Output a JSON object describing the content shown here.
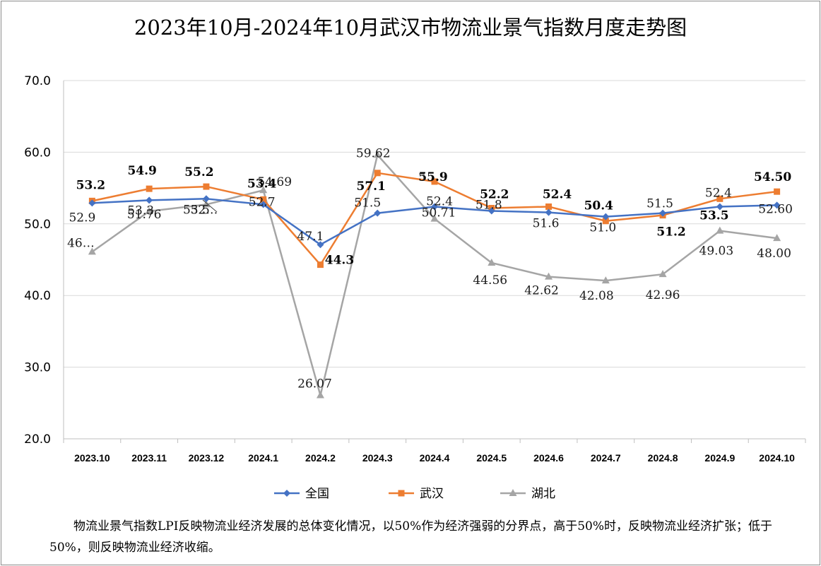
{
  "chart_data": {
    "type": "line",
    "title": "2023年10月-2024年10月武汉市物流业景气指数月度走势图",
    "categories": [
      "2023.10",
      "2023.11",
      "2023.12",
      "2024.1",
      "2024.2",
      "2024.3",
      "2024.4",
      "2024.5",
      "2024.6",
      "2024.7",
      "2024.8",
      "2024.9",
      "2024.10"
    ],
    "ylim": [
      20,
      70
    ],
    "yticks": [
      "20.0",
      "30.0",
      "40.0",
      "50.0",
      "60.0",
      "70.0"
    ],
    "grid": "horizontal",
    "legend_position": "bottom",
    "series": [
      {
        "name": "全国",
        "color": "#4472C4",
        "marker": "diamond",
        "values": [
          52.9,
          53.3,
          53.5,
          52.7,
          47.1,
          51.5,
          52.4,
          51.8,
          51.6,
          51.0,
          51.5,
          52.4,
          52.6
        ],
        "labels": [
          "52.9",
          "53.3",
          "53.5",
          "52.7",
          "47.1",
          "51.5",
          "52.4",
          "51.8",
          "51.6",
          "51.0",
          "51.5",
          "52.4",
          "52.60"
        ]
      },
      {
        "name": "武汉",
        "color": "#ED7D31",
        "marker": "square",
        "values": [
          53.2,
          54.9,
          55.2,
          53.4,
          44.3,
          57.1,
          55.9,
          52.2,
          52.4,
          50.4,
          51.2,
          53.5,
          54.5
        ],
        "labels": [
          "53.2",
          "54.9",
          "55.2",
          "53.4",
          "44.3",
          "57.1",
          "55.9",
          "52.2",
          "52.4",
          "50.4",
          "51.2",
          "53.5",
          "54.50"
        ]
      },
      {
        "name": "湖北",
        "color": "#A5A5A5",
        "marker": "triangle",
        "values": [
          46.1,
          51.76,
          52.7,
          54.69,
          26.07,
          59.62,
          50.71,
          44.56,
          42.62,
          42.08,
          42.96,
          49.03,
          48.0
        ],
        "labels": [
          "46…",
          "51.76",
          "52…",
          "54.69",
          "26.07",
          "59.62",
          "50.71",
          "44.56",
          "42.62",
          "42.08",
          "42.96",
          "49.03",
          "48.00"
        ]
      }
    ]
  },
  "note": "物流业景气指数LPI反映物流业经济发展的总体变化情况，以50%作为经济强弱的分界点，高于50%时，反映物流业经济扩张；低于50%，则反映物流业经济收缩。"
}
